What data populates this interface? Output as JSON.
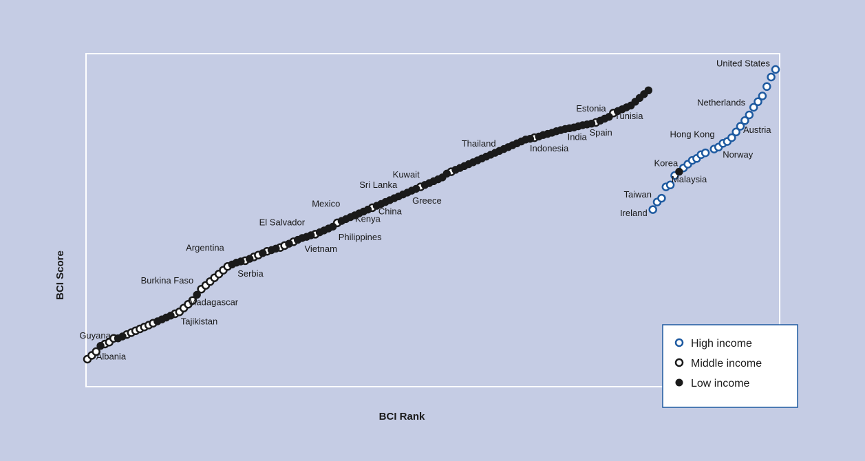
{
  "chart_data": {
    "type": "scatter",
    "xlabel": "BCI Rank",
    "ylabel": "BCI Score",
    "title": "",
    "grid": false,
    "legend_position": "bottom-right",
    "colors": {
      "panel_background": "#c5cce4",
      "plot_border": "#ffffff",
      "high_income": "#1e5aa0",
      "middle_income": "#1a1a1a",
      "low_income": "#1a1a1a",
      "legend_border": "#1e5aa0"
    },
    "legend": [
      {
        "key": "high",
        "label": "High income"
      },
      {
        "key": "middle",
        "label": "Middle income"
      },
      {
        "key": "low",
        "label": "Low income"
      }
    ],
    "series": [
      {
        "name": "High income",
        "key": "high",
        "points": [
          {
            "x": 130,
            "y": 0.25
          },
          {
            "x": 131,
            "y": 0.45
          },
          {
            "x": 132,
            "y": 0.55
          },
          {
            "x": 133,
            "y": 0.85
          },
          {
            "x": 134,
            "y": 0.9
          },
          {
            "x": 135,
            "y": 1.15
          },
          {
            "x": 137,
            "y": 1.35
          },
          {
            "x": 138,
            "y": 1.45
          },
          {
            "x": 139,
            "y": 1.55
          },
          {
            "x": 140,
            "y": 1.6
          },
          {
            "x": 141,
            "y": 1.7
          },
          {
            "x": 142,
            "y": 1.75
          },
          {
            "x": 144,
            "y": 1.85
          },
          {
            "x": 145,
            "y": 1.9
          },
          {
            "x": 146,
            "y": 2.0
          },
          {
            "x": 147,
            "y": 2.05
          },
          {
            "x": 148,
            "y": 2.15
          },
          {
            "x": 149,
            "y": 2.3
          },
          {
            "x": 150,
            "y": 2.45
          },
          {
            "x": 151,
            "y": 2.6
          },
          {
            "x": 152,
            "y": 2.75
          },
          {
            "x": 153,
            "y": 2.95
          },
          {
            "x": 154,
            "y": 3.1
          },
          {
            "x": 155,
            "y": 3.25
          },
          {
            "x": 156,
            "y": 3.5
          },
          {
            "x": 157,
            "y": 3.75
          },
          {
            "x": 158,
            "y": 3.95
          }
        ]
      },
      {
        "name": "Middle income",
        "key": "middle",
        "points": [
          {
            "x": 1,
            "y": -3.7
          },
          {
            "x": 2,
            "y": -3.6
          },
          {
            "x": 3,
            "y": -3.5
          },
          {
            "x": 5,
            "y": -3.3
          },
          {
            "x": 6,
            "y": -3.25
          },
          {
            "x": 7,
            "y": -3.15
          },
          {
            "x": 10,
            "y": -3.05
          },
          {
            "x": 11,
            "y": -3.0
          },
          {
            "x": 12,
            "y": -2.95
          },
          {
            "x": 13,
            "y": -2.9
          },
          {
            "x": 14,
            "y": -2.85
          },
          {
            "x": 15,
            "y": -2.8
          },
          {
            "x": 16,
            "y": -2.75
          },
          {
            "x": 21,
            "y": -2.5
          },
          {
            "x": 22,
            "y": -2.45
          },
          {
            "x": 23,
            "y": -2.35
          },
          {
            "x": 24,
            "y": -2.25
          },
          {
            "x": 25,
            "y": -2.15
          },
          {
            "x": 27,
            "y": -1.85
          },
          {
            "x": 28,
            "y": -1.75
          },
          {
            "x": 29,
            "y": -1.65
          },
          {
            "x": 30,
            "y": -1.55
          },
          {
            "x": 31,
            "y": -1.45
          },
          {
            "x": 32,
            "y": -1.35
          },
          {
            "x": 33,
            "y": -1.25
          },
          {
            "x": 37,
            "y": -1.1
          },
          {
            "x": 39,
            "y": -1.0
          },
          {
            "x": 40,
            "y": -0.95
          },
          {
            "x": 42,
            "y": -0.85
          },
          {
            "x": 45,
            "y": -0.75
          },
          {
            "x": 46,
            "y": -0.7
          },
          {
            "x": 48,
            "y": -0.6
          },
          {
            "x": 53,
            "y": -0.4
          },
          {
            "x": 58,
            "y": -0.1
          },
          {
            "x": 66,
            "y": 0.3
          },
          {
            "x": 77,
            "y": 0.85
          },
          {
            "x": 84,
            "y": 1.25
          },
          {
            "x": 103,
            "y": 2.15
          },
          {
            "x": 117,
            "y": 2.55
          },
          {
            "x": 121,
            "y": 2.8
          }
        ]
      },
      {
        "name": "Low income",
        "key": "low",
        "points": [
          {
            "x": 4,
            "y": -3.35
          },
          {
            "x": 8,
            "y": -3.15
          },
          {
            "x": 9,
            "y": -3.1
          },
          {
            "x": 17,
            "y": -2.7
          },
          {
            "x": 18,
            "y": -2.65
          },
          {
            "x": 19,
            "y": -2.6
          },
          {
            "x": 20,
            "y": -2.55
          },
          {
            "x": 26,
            "y": -2.0
          },
          {
            "x": 34,
            "y": -1.2
          },
          {
            "x": 35,
            "y": -1.15
          },
          {
            "x": 36,
            "y": -1.12
          },
          {
            "x": 38,
            "y": -1.05
          },
          {
            "x": 41,
            "y": -0.9
          },
          {
            "x": 43,
            "y": -0.82
          },
          {
            "x": 44,
            "y": -0.78
          },
          {
            "x": 47,
            "y": -0.65
          },
          {
            "x": 49,
            "y": -0.55
          },
          {
            "x": 50,
            "y": -0.5
          },
          {
            "x": 51,
            "y": -0.47
          },
          {
            "x": 52,
            "y": -0.43
          },
          {
            "x": 54,
            "y": -0.35
          },
          {
            "x": 55,
            "y": -0.3
          },
          {
            "x": 56,
            "y": -0.25
          },
          {
            "x": 57,
            "y": -0.2
          },
          {
            "x": 59,
            "y": -0.05
          },
          {
            "x": 60,
            "y": 0.0
          },
          {
            "x": 61,
            "y": 0.05
          },
          {
            "x": 62,
            "y": 0.1
          },
          {
            "x": 63,
            "y": 0.15
          },
          {
            "x": 64,
            "y": 0.2
          },
          {
            "x": 65,
            "y": 0.25
          },
          {
            "x": 67,
            "y": 0.35
          },
          {
            "x": 68,
            "y": 0.4
          },
          {
            "x": 69,
            "y": 0.45
          },
          {
            "x": 70,
            "y": 0.5
          },
          {
            "x": 71,
            "y": 0.55
          },
          {
            "x": 72,
            "y": 0.6
          },
          {
            "x": 73,
            "y": 0.65
          },
          {
            "x": 74,
            "y": 0.7
          },
          {
            "x": 75,
            "y": 0.75
          },
          {
            "x": 76,
            "y": 0.8
          },
          {
            "x": 78,
            "y": 0.9
          },
          {
            "x": 79,
            "y": 0.95
          },
          {
            "x": 80,
            "y": 1.0
          },
          {
            "x": 81,
            "y": 1.05
          },
          {
            "x": 82,
            "y": 1.1
          },
          {
            "x": 83,
            "y": 1.2
          },
          {
            "x": 85,
            "y": 1.3
          },
          {
            "x": 86,
            "y": 1.35
          },
          {
            "x": 87,
            "y": 1.4
          },
          {
            "x": 88,
            "y": 1.45
          },
          {
            "x": 89,
            "y": 1.5
          },
          {
            "x": 90,
            "y": 1.55
          },
          {
            "x": 91,
            "y": 1.6
          },
          {
            "x": 92,
            "y": 1.65
          },
          {
            "x": 93,
            "y": 1.7
          },
          {
            "x": 94,
            "y": 1.75
          },
          {
            "x": 95,
            "y": 1.8
          },
          {
            "x": 96,
            "y": 1.85
          },
          {
            "x": 97,
            "y": 1.9
          },
          {
            "x": 98,
            "y": 1.95
          },
          {
            "x": 99,
            "y": 2.0
          },
          {
            "x": 100,
            "y": 2.05
          },
          {
            "x": 101,
            "y": 2.1
          },
          {
            "x": 102,
            "y": 2.12
          },
          {
            "x": 104,
            "y": 2.18
          },
          {
            "x": 105,
            "y": 2.22
          },
          {
            "x": 106,
            "y": 2.25
          },
          {
            "x": 107,
            "y": 2.28
          },
          {
            "x": 108,
            "y": 2.32
          },
          {
            "x": 109,
            "y": 2.35
          },
          {
            "x": 110,
            "y": 2.38
          },
          {
            "x": 111,
            "y": 2.4
          },
          {
            "x": 112,
            "y": 2.42
          },
          {
            "x": 113,
            "y": 2.45
          },
          {
            "x": 114,
            "y": 2.48
          },
          {
            "x": 115,
            "y": 2.5
          },
          {
            "x": 116,
            "y": 2.52
          },
          {
            "x": 118,
            "y": 2.6
          },
          {
            "x": 119,
            "y": 2.65
          },
          {
            "x": 120,
            "y": 2.7
          },
          {
            "x": 122,
            "y": 2.85
          },
          {
            "x": 123,
            "y": 2.9
          },
          {
            "x": 124,
            "y": 2.95
          },
          {
            "x": 125,
            "y": 3.0
          },
          {
            "x": 126,
            "y": 3.1
          },
          {
            "x": 127,
            "y": 3.2
          },
          {
            "x": 128,
            "y": 3.3
          },
          {
            "x": 129,
            "y": 3.4
          },
          {
            "x": 136,
            "y": 1.25
          }
        ]
      }
    ],
    "annotations": [
      {
        "text": "Albania",
        "x": 3,
        "y": -3.5,
        "anchor": "start",
        "dx": 0,
        "dy": 8
      },
      {
        "text": "Guyana",
        "x": 4,
        "y": -3.35,
        "anchor": "middle",
        "dx": -8,
        "dy": -14
      },
      {
        "text": "Tajikistan",
        "x": 24,
        "y": -2.25,
        "anchor": "middle",
        "dx": 16,
        "dy": 26
      },
      {
        "text": "Madagascar",
        "x": 27,
        "y": -1.85,
        "anchor": "start",
        "dx": -18,
        "dy": 20
      },
      {
        "text": "Burkina Faso",
        "x": 26,
        "y": -2.0,
        "anchor": "end",
        "dx": -5,
        "dy": -20
      },
      {
        "text": "Argentina",
        "x": 33,
        "y": -1.25,
        "anchor": "end",
        "dx": -5,
        "dy": -26
      },
      {
        "text": "Serbia",
        "x": 34,
        "y": -1.2,
        "anchor": "start",
        "dx": 8,
        "dy": 14
      },
      {
        "text": "El Salvador",
        "x": 50,
        "y": -0.5,
        "anchor": "end",
        "dx": 4,
        "dy": -22
      },
      {
        "text": "Vietnam",
        "x": 53,
        "y": -0.4,
        "anchor": "middle",
        "dx": 8,
        "dy": 22
      },
      {
        "text": "Mexico",
        "x": 59,
        "y": -0.05,
        "anchor": "end",
        "dx": -2,
        "dy": -24
      },
      {
        "text": "Philippines",
        "x": 61,
        "y": 0.05,
        "anchor": "middle",
        "dx": 14,
        "dy": 30
      },
      {
        "text": "Kenya",
        "x": 67,
        "y": 0.35,
        "anchor": "middle",
        "dx": -13,
        "dy": 20
      },
      {
        "text": "China",
        "x": 71,
        "y": 0.55,
        "anchor": "middle",
        "dx": -6,
        "dy": 20
      },
      {
        "text": "Sri Lanka",
        "x": 72,
        "y": 0.6,
        "anchor": "end",
        "dx": -2,
        "dy": -16
      },
      {
        "text": "Kuwait",
        "x": 76,
        "y": 0.8,
        "anchor": "end",
        "dx": 5,
        "dy": -20
      },
      {
        "text": "Greece",
        "x": 78,
        "y": 0.9,
        "anchor": "middle",
        "dx": 3,
        "dy": 24
      },
      {
        "text": "Thailand",
        "x": 92,
        "y": 1.65,
        "anchor": "end",
        "dx": 14,
        "dy": -18
      },
      {
        "text": "Indonesia",
        "x": 101,
        "y": 2.1,
        "anchor": "start",
        "dx": 6,
        "dy": 14
      },
      {
        "text": "India",
        "x": 111,
        "y": 2.4,
        "anchor": "start",
        "dx": -3,
        "dy": 14
      },
      {
        "text": "Spain",
        "x": 116,
        "y": 2.52,
        "anchor": "start",
        "dx": -3,
        "dy": 14
      },
      {
        "text": "Estonia",
        "x": 119,
        "y": 2.65,
        "anchor": "end",
        "dx": 2,
        "dy": -14
      },
      {
        "text": "Tunisia",
        "x": 120,
        "y": 2.7,
        "anchor": "start",
        "dx": 8,
        "dy": 0
      },
      {
        "text": "Ireland",
        "x": 130,
        "y": 0.25,
        "anchor": "end",
        "dx": -8,
        "dy": 6
      },
      {
        "text": "Taiwan",
        "x": 131,
        "y": 0.45,
        "anchor": "end",
        "dx": -8,
        "dy": -10
      },
      {
        "text": "Malaysia",
        "x": 136,
        "y": 1.25,
        "anchor": "start",
        "dx": -11,
        "dy": 12
      },
      {
        "text": "Korea",
        "x": 137,
        "y": 1.35,
        "anchor": "end",
        "dx": -8,
        "dy": -6
      },
      {
        "text": "Norway",
        "x": 145,
        "y": 1.9,
        "anchor": "start",
        "dx": 6,
        "dy": 12
      },
      {
        "text": "Hong Kong",
        "x": 146,
        "y": 2.0,
        "anchor": "end",
        "dx": -12,
        "dy": -12
      },
      {
        "text": "Austria",
        "x": 150,
        "y": 2.45,
        "anchor": "start",
        "dx": 4,
        "dy": 6
      },
      {
        "text": "Netherlands",
        "x": 153,
        "y": 2.95,
        "anchor": "end",
        "dx": -12,
        "dy": -6
      },
      {
        "text": "United States",
        "x": 158,
        "y": 3.95,
        "anchor": "end",
        "dx": -8,
        "dy": -8
      }
    ]
  }
}
